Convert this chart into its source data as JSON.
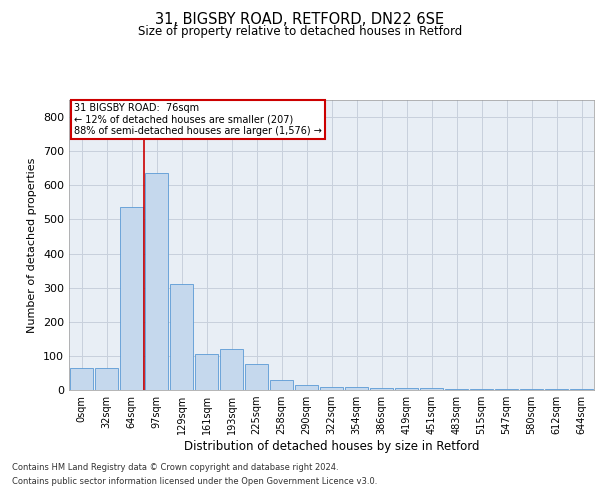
{
  "title_line1": "31, BIGSBY ROAD, RETFORD, DN22 6SE",
  "title_line2": "Size of property relative to detached houses in Retford",
  "xlabel": "Distribution of detached houses by size in Retford",
  "ylabel": "Number of detached properties",
  "bar_labels": [
    "0sqm",
    "32sqm",
    "64sqm",
    "97sqm",
    "129sqm",
    "161sqm",
    "193sqm",
    "225sqm",
    "258sqm",
    "290sqm",
    "322sqm",
    "354sqm",
    "386sqm",
    "419sqm",
    "451sqm",
    "483sqm",
    "515sqm",
    "547sqm",
    "580sqm",
    "612sqm",
    "644sqm"
  ],
  "bar_values": [
    65,
    65,
    535,
    635,
    310,
    105,
    120,
    75,
    28,
    15,
    10,
    8,
    7,
    5,
    5,
    4,
    3,
    3,
    3,
    3,
    3
  ],
  "bar_color": "#c5d8ed",
  "bar_edge_color": "#5a9ad5",
  "grid_color": "#c8d0dc",
  "background_color": "#e8eef5",
  "annotation_text": "31 BIGSBY ROAD:  76sqm\n← 12% of detached houses are smaller (207)\n88% of semi-detached houses are larger (1,576) →",
  "vline_color": "#cc0000",
  "ylim": [
    0,
    850
  ],
  "yticks": [
    0,
    100,
    200,
    300,
    400,
    500,
    600,
    700,
    800
  ],
  "footer_line1": "Contains HM Land Registry data © Crown copyright and database right 2024.",
  "footer_line2": "Contains public sector information licensed under the Open Government Licence v3.0."
}
